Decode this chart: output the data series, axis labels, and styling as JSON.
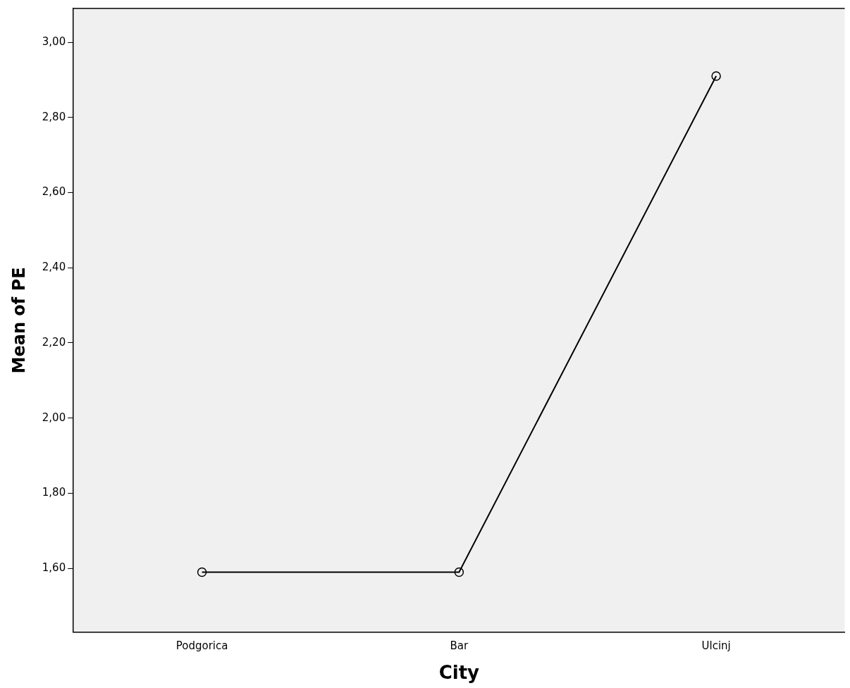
{
  "chart_data": {
    "type": "line",
    "xlabel": "City",
    "ylabel": "Mean of PE",
    "categories": [
      "Podgorica",
      "Bar",
      "Ulcinj"
    ],
    "series": [
      {
        "color": "#000000",
        "values": [
          1.59,
          1.59,
          2.91
        ]
      }
    ],
    "ylim": [
      1.43,
      3.09
    ],
    "yticks": [
      {
        "value": 1.6,
        "label": "1,60"
      },
      {
        "value": 1.8,
        "label": "1,80"
      },
      {
        "value": 2.0,
        "label": "2,00"
      },
      {
        "value": 2.2,
        "label": "2,20"
      },
      {
        "value": 2.4,
        "label": "2,40"
      },
      {
        "value": 2.6,
        "label": "2,60"
      },
      {
        "value": 2.8,
        "label": "2,80"
      },
      {
        "value": 3.0,
        "label": "3,00"
      }
    ],
    "grid": false,
    "legend": false,
    "marker": "circle",
    "line_style": "solid"
  }
}
